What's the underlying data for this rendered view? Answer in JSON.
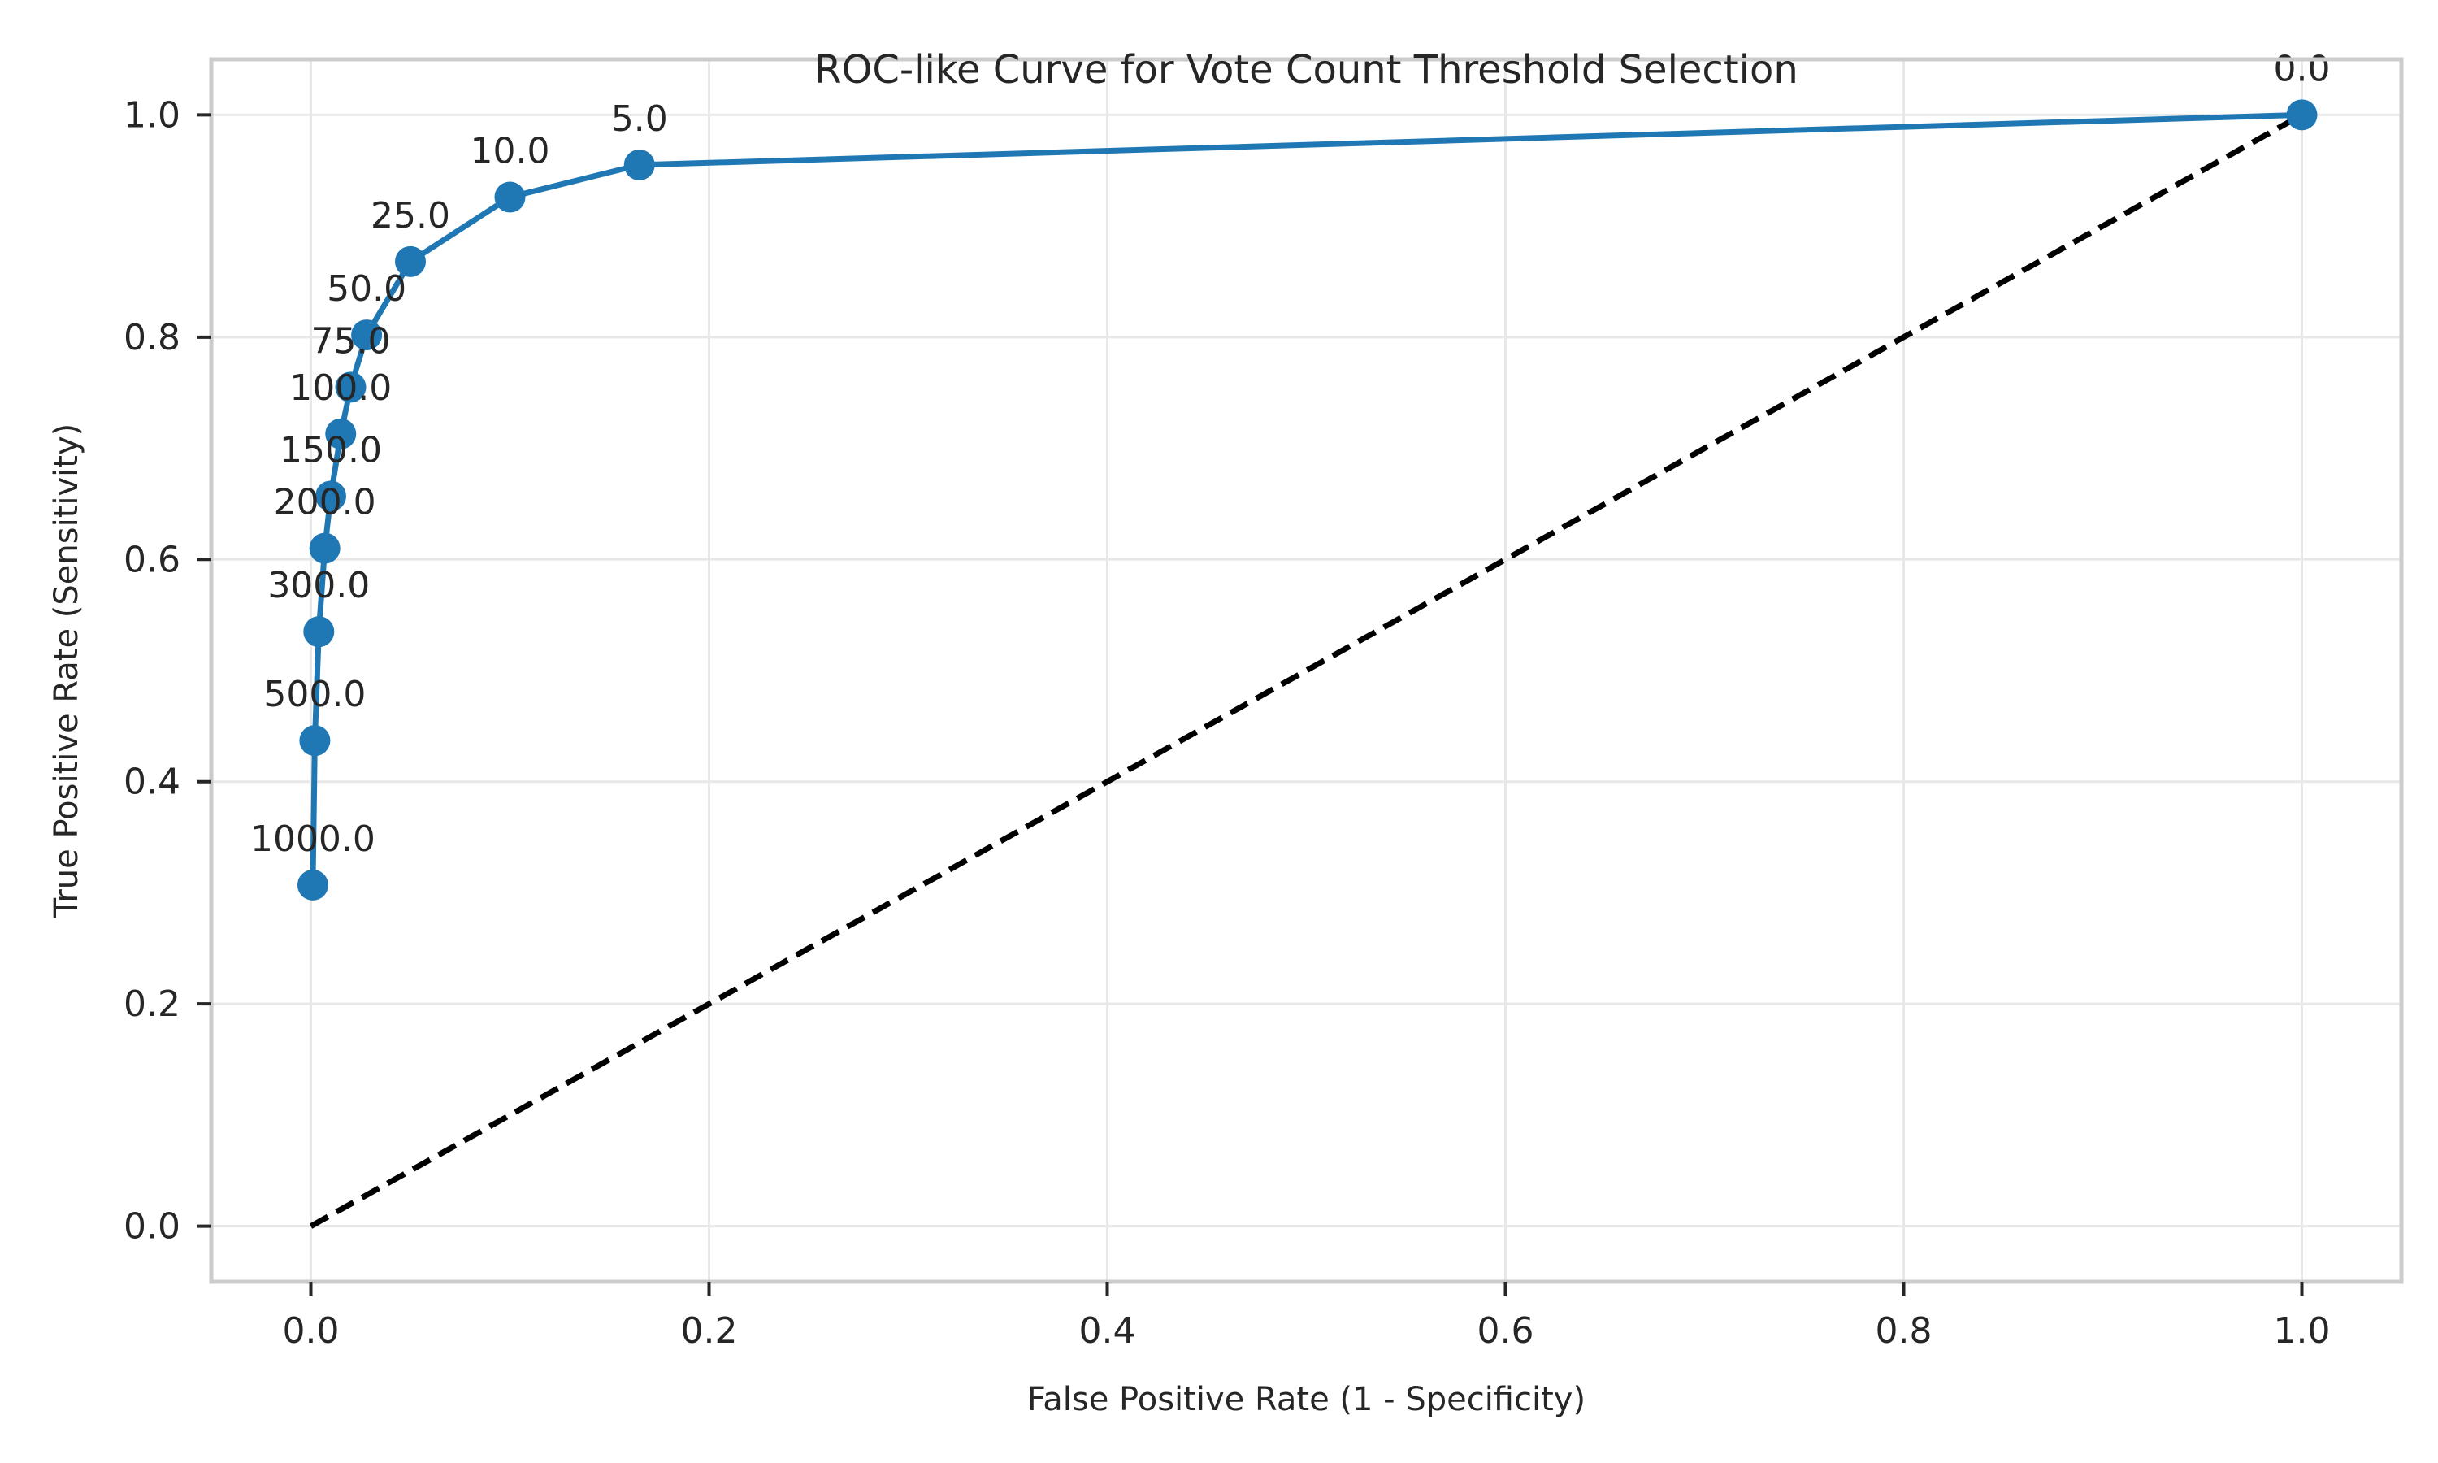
{
  "chart_data": {
    "type": "line",
    "title": "ROC-like Curve for Vote Count Threshold Selection",
    "xlabel": "False Positive Rate (1 - Specificity)",
    "ylabel": "True Positive Rate (Sensitivity)",
    "xlim": [
      -0.05,
      1.05
    ],
    "ylim": [
      -0.05,
      1.05
    ],
    "x_ticks": [
      "0.0",
      "0.2",
      "0.4",
      "0.6",
      "0.8",
      "1.0"
    ],
    "y_ticks": [
      "0.0",
      "0.2",
      "0.4",
      "0.6",
      "0.8",
      "1.0"
    ],
    "grid": true,
    "series": [
      {
        "color": "#1f77b4",
        "marker": "circle",
        "points": [
          {
            "label": "1000.0",
            "x": 0.001,
            "y": 0.307
          },
          {
            "label": "500.0",
            "x": 0.002,
            "y": 0.437
          },
          {
            "label": "300.0",
            "x": 0.004,
            "y": 0.535
          },
          {
            "label": "200.0",
            "x": 0.007,
            "y": 0.61
          },
          {
            "label": "150.0",
            "x": 0.01,
            "y": 0.657
          },
          {
            "label": "100.0",
            "x": 0.015,
            "y": 0.713
          },
          {
            "label": "75.0",
            "x": 0.02,
            "y": 0.755
          },
          {
            "label": "50.0",
            "x": 0.028,
            "y": 0.802
          },
          {
            "label": "25.0",
            "x": 0.05,
            "y": 0.868
          },
          {
            "label": "10.0",
            "x": 0.1,
            "y": 0.926
          },
          {
            "label": "5.0",
            "x": 0.165,
            "y": 0.955
          },
          {
            "label": "0.0",
            "x": 1.0,
            "y": 1.0
          }
        ]
      }
    ],
    "reference_line": {
      "x": [
        0,
        1
      ],
      "y": [
        0,
        1
      ],
      "style": "dashed",
      "color": "#000000"
    }
  }
}
